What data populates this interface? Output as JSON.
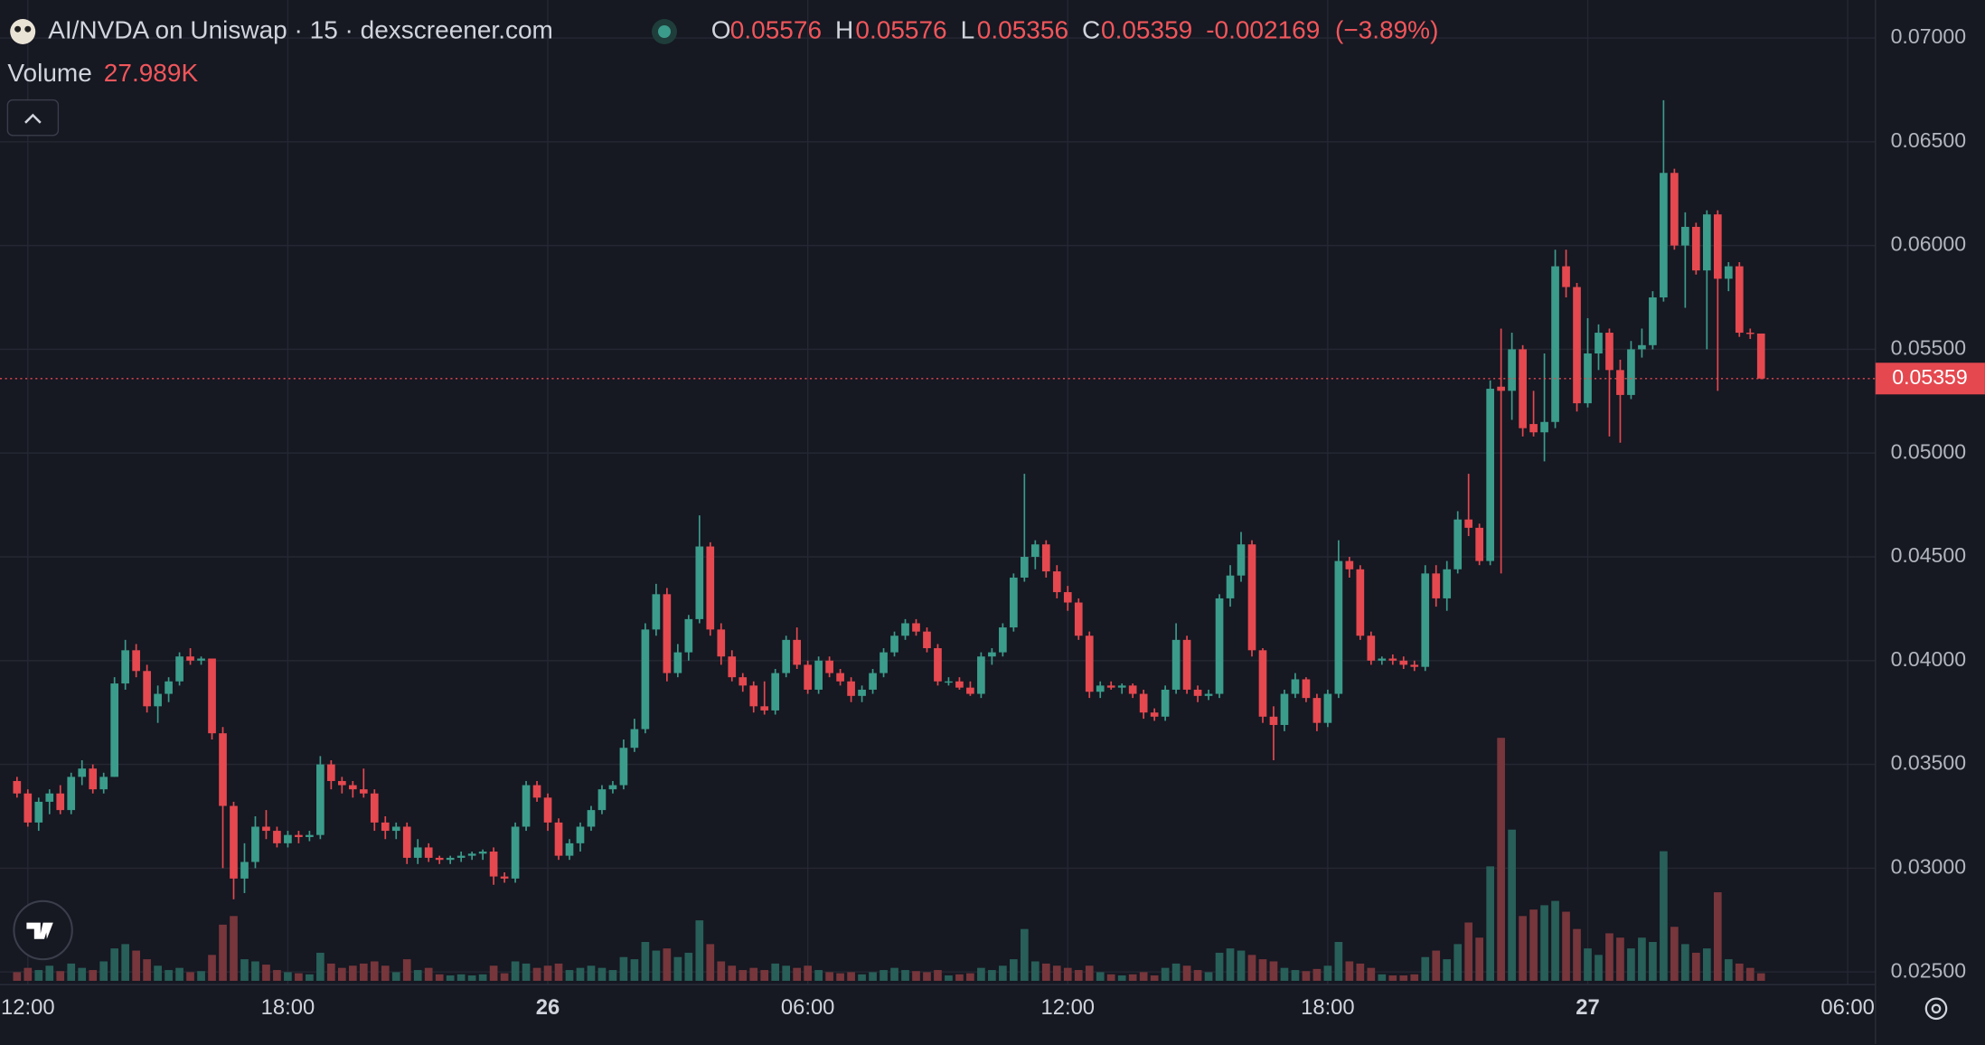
{
  "header": {
    "title": "AI/NVDA on Uniswap · 15 · dexscreener.com",
    "o_key": "O",
    "open": 0.05576,
    "h_key": "H",
    "high": 0.05576,
    "l_key": "L",
    "low": 0.05356,
    "c_key": "C",
    "close": 0.05359,
    "change": -0.002169,
    "change_pct": "(−3.89%)",
    "volume_label": "Volume",
    "volume": "27.989K"
  },
  "chart_data": {
    "type": "candlestick",
    "up_color": "#3b9c8b",
    "down_color": "#e5484f",
    "volume_up_color": "#285f58",
    "volume_down_color": "#76363b",
    "grid": true,
    "xlim": [
      -1.57,
      171.56
    ],
    "xticks": [
      {
        "value": 1,
        "label": "12:00"
      },
      {
        "value": 25,
        "label": "18:00"
      },
      {
        "value": 49,
        "label": "26"
      },
      {
        "value": 73,
        "label": "06:00"
      },
      {
        "value": 97,
        "label": "12:00"
      },
      {
        "value": 121,
        "label": "18:00"
      },
      {
        "value": 145,
        "label": "27"
      },
      {
        "value": 169,
        "label": "06:00"
      }
    ],
    "ylim": [
      0.02439,
      0.07183
    ],
    "yticks": [
      {
        "value": 0.025,
        "label": "0.02500"
      },
      {
        "value": 0.03,
        "label": "0.03000"
      },
      {
        "value": 0.035,
        "label": "0.03500"
      },
      {
        "value": 0.04,
        "label": "0.04000"
      },
      {
        "value": 0.045,
        "label": "0.04500"
      },
      {
        "value": 0.05,
        "label": "0.05000"
      },
      {
        "value": 0.055,
        "label": "0.05500"
      },
      {
        "value": 0.06,
        "label": "0.06000"
      },
      {
        "value": 0.065,
        "label": "0.06500"
      },
      {
        "value": 0.07,
        "label": "0.07000"
      }
    ],
    "last_price": 0.05359,
    "open": [
      0.0342,
      0.0336,
      0.0322,
      0.0332,
      0.0336,
      0.0328,
      0.0344,
      0.0348,
      0.0338,
      0.0344,
      0.0389,
      0.0405,
      0.0395,
      0.0378,
      0.0384,
      0.039,
      0.0402,
      0.04,
      0.0401,
      0.0365,
      0.033,
      0.0295,
      0.0303,
      0.032,
      0.0318,
      0.0312,
      0.0316,
      0.0315,
      0.0316,
      0.035,
      0.0342,
      0.034,
      0.0338,
      0.0336,
      0.0322,
      0.0318,
      0.032,
      0.0305,
      0.031,
      0.0305,
      0.0304,
      0.0305,
      0.0306,
      0.0307,
      0.0308,
      0.0296,
      0.0295,
      0.032,
      0.034,
      0.0334,
      0.0322,
      0.0306,
      0.0312,
      0.032,
      0.0328,
      0.0338,
      0.034,
      0.0358,
      0.0367,
      0.0415,
      0.0432,
      0.0394,
      0.0404,
      0.042,
      0.0455,
      0.0415,
      0.0402,
      0.0392,
      0.0388,
      0.0378,
      0.0376,
      0.0394,
      0.041,
      0.0398,
      0.0386,
      0.04,
      0.0394,
      0.039,
      0.0383,
      0.0386,
      0.0394,
      0.0404,
      0.0412,
      0.0418,
      0.0414,
      0.0406,
      0.039,
      0.039,
      0.0387,
      0.0384,
      0.0402,
      0.0404,
      0.0416,
      0.044,
      0.045,
      0.0456,
      0.0443,
      0.0433,
      0.0428,
      0.0412,
      0.0385,
      0.0388,
      0.0387,
      0.0388,
      0.0384,
      0.0375,
      0.0373,
      0.0386,
      0.041,
      0.0386,
      0.0383,
      0.0384,
      0.043,
      0.0441,
      0.0456,
      0.0405,
      0.0373,
      0.0369,
      0.0384,
      0.0391,
      0.0382,
      0.037,
      0.0384,
      0.0448,
      0.0444,
      0.0412,
      0.04,
      0.0401,
      0.04,
      0.0398,
      0.0397,
      0.0442,
      0.043,
      0.0444,
      0.0468,
      0.0464,
      0.0448,
      0.0532,
      0.053,
      0.055,
      0.0514,
      0.051,
      0.0515,
      0.059,
      0.058,
      0.0524,
      0.0548,
      0.0558,
      0.054,
      0.0528,
      0.055,
      0.0552,
      0.0575,
      0.0635,
      0.06,
      0.0609,
      0.0588,
      0.0615,
      0.0584,
      0.059,
      0.0558,
      0.05576
    ],
    "high": [
      0.0344,
      0.0338,
      0.0334,
      0.0338,
      0.034,
      0.0346,
      0.0352,
      0.035,
      0.0346,
      0.0392,
      0.041,
      0.0408,
      0.0398,
      0.0388,
      0.0392,
      0.0404,
      0.0406,
      0.0402,
      0.0401,
      0.0368,
      0.0332,
      0.0312,
      0.0325,
      0.0328,
      0.032,
      0.0318,
      0.0318,
      0.0318,
      0.0354,
      0.0352,
      0.0344,
      0.0342,
      0.0348,
      0.0338,
      0.0325,
      0.0322,
      0.0322,
      0.0314,
      0.0312,
      0.0306,
      0.0306,
      0.0308,
      0.0308,
      0.0309,
      0.031,
      0.0298,
      0.0322,
      0.0342,
      0.0342,
      0.0336,
      0.0324,
      0.0314,
      0.0322,
      0.033,
      0.034,
      0.0342,
      0.0362,
      0.0372,
      0.0418,
      0.0437,
      0.0435,
      0.0408,
      0.0422,
      0.047,
      0.0457,
      0.0418,
      0.0405,
      0.0394,
      0.039,
      0.039,
      0.0396,
      0.0412,
      0.0416,
      0.04,
      0.0402,
      0.0402,
      0.0396,
      0.0392,
      0.0388,
      0.0396,
      0.0406,
      0.0414,
      0.042,
      0.042,
      0.0416,
      0.0408,
      0.0392,
      0.0392,
      0.039,
      0.0404,
      0.0406,
      0.0418,
      0.0442,
      0.049,
      0.0458,
      0.0458,
      0.0446,
      0.0436,
      0.043,
      0.0414,
      0.039,
      0.039,
      0.0389,
      0.0389,
      0.0386,
      0.0377,
      0.0388,
      0.0418,
      0.0412,
      0.0388,
      0.0386,
      0.0432,
      0.0446,
      0.0462,
      0.0458,
      0.0406,
      0.0378,
      0.0386,
      0.0394,
      0.0392,
      0.0384,
      0.0386,
      0.0458,
      0.045,
      0.0446,
      0.0414,
      0.0402,
      0.0403,
      0.0402,
      0.04,
      0.0446,
      0.0446,
      0.0448,
      0.0472,
      0.049,
      0.0466,
      0.0535,
      0.056,
      0.0558,
      0.0552,
      0.053,
      0.0548,
      0.0598,
      0.0598,
      0.0582,
      0.0565,
      0.0562,
      0.056,
      0.0545,
      0.0554,
      0.056,
      0.0578,
      0.067,
      0.0637,
      0.0616,
      0.0611,
      0.0617,
      0.0617,
      0.0592,
      0.0592,
      0.056,
      0.05576
    ],
    "low": [
      0.0334,
      0.032,
      0.0318,
      0.0326,
      0.0326,
      0.0326,
      0.034,
      0.0336,
      0.0336,
      0.0344,
      0.0386,
      0.0392,
      0.0375,
      0.037,
      0.038,
      0.0388,
      0.0398,
      0.0398,
      0.0362,
      0.03,
      0.0285,
      0.0288,
      0.03,
      0.0314,
      0.031,
      0.031,
      0.0312,
      0.0313,
      0.0314,
      0.0338,
      0.0336,
      0.0334,
      0.0334,
      0.0318,
      0.0314,
      0.0314,
      0.0302,
      0.0302,
      0.0303,
      0.0302,
      0.0302,
      0.0303,
      0.0304,
      0.0304,
      0.0292,
      0.0293,
      0.0293,
      0.0318,
      0.0332,
      0.0318,
      0.0304,
      0.0304,
      0.0308,
      0.0318,
      0.0326,
      0.0336,
      0.0338,
      0.0356,
      0.0365,
      0.0412,
      0.039,
      0.0392,
      0.04,
      0.0418,
      0.0412,
      0.0398,
      0.039,
      0.0385,
      0.0375,
      0.0374,
      0.0374,
      0.0392,
      0.0396,
      0.0384,
      0.0384,
      0.0392,
      0.0388,
      0.038,
      0.038,
      0.0384,
      0.0392,
      0.0402,
      0.041,
      0.0412,
      0.0404,
      0.0388,
      0.0388,
      0.0386,
      0.0383,
      0.0382,
      0.0398,
      0.0402,
      0.0414,
      0.0438,
      0.0444,
      0.044,
      0.043,
      0.0424,
      0.041,
      0.0382,
      0.0382,
      0.0386,
      0.0384,
      0.0382,
      0.0372,
      0.0371,
      0.0371,
      0.0384,
      0.0384,
      0.038,
      0.0381,
      0.0382,
      0.0426,
      0.0438,
      0.0402,
      0.037,
      0.0352,
      0.0366,
      0.0382,
      0.038,
      0.0366,
      0.0368,
      0.0382,
      0.044,
      0.041,
      0.0398,
      0.0398,
      0.0398,
      0.0396,
      0.0395,
      0.0395,
      0.0426,
      0.0424,
      0.0442,
      0.046,
      0.0446,
      0.0446,
      0.0442,
      0.0516,
      0.0508,
      0.0508,
      0.0496,
      0.0512,
      0.0575,
      0.052,
      0.0522,
      0.054,
      0.0508,
      0.0505,
      0.0526,
      0.0546,
      0.055,
      0.0573,
      0.0598,
      0.057,
      0.0586,
      0.055,
      0.053,
      0.0578,
      0.0556,
      0.0555,
      0.05356
    ],
    "close": [
      0.0336,
      0.0322,
      0.0332,
      0.0336,
      0.0328,
      0.0344,
      0.0348,
      0.0338,
      0.0344,
      0.0389,
      0.0405,
      0.0395,
      0.0378,
      0.0384,
      0.039,
      0.0402,
      0.04,
      0.0401,
      0.0365,
      0.033,
      0.0295,
      0.0303,
      0.032,
      0.0318,
      0.0312,
      0.0316,
      0.0315,
      0.0316,
      0.035,
      0.0342,
      0.034,
      0.0338,
      0.0336,
      0.0322,
      0.0318,
      0.032,
      0.0305,
      0.031,
      0.0305,
      0.0304,
      0.0305,
      0.0306,
      0.0307,
      0.0308,
      0.0296,
      0.0295,
      0.032,
      0.034,
      0.0334,
      0.0322,
      0.0306,
      0.0312,
      0.032,
      0.0328,
      0.0338,
      0.034,
      0.0358,
      0.0367,
      0.0415,
      0.0432,
      0.0394,
      0.0404,
      0.042,
      0.0455,
      0.0415,
      0.0402,
      0.0392,
      0.0388,
      0.0378,
      0.0376,
      0.0394,
      0.041,
      0.0398,
      0.0386,
      0.04,
      0.0394,
      0.039,
      0.0383,
      0.0386,
      0.0394,
      0.0404,
      0.0412,
      0.0418,
      0.0414,
      0.0406,
      0.039,
      0.039,
      0.0387,
      0.0384,
      0.0402,
      0.0404,
      0.0416,
      0.044,
      0.045,
      0.0456,
      0.0443,
      0.0433,
      0.0428,
      0.0412,
      0.0385,
      0.0388,
      0.0387,
      0.0388,
      0.0384,
      0.0375,
      0.0373,
      0.0386,
      0.041,
      0.0386,
      0.0383,
      0.0384,
      0.043,
      0.0441,
      0.0456,
      0.0405,
      0.0373,
      0.0369,
      0.0384,
      0.0391,
      0.0382,
      0.037,
      0.0384,
      0.0448,
      0.0444,
      0.0412,
      0.04,
      0.0401,
      0.04,
      0.0398,
      0.0397,
      0.0442,
      0.043,
      0.0444,
      0.0468,
      0.0464,
      0.0448,
      0.0531,
      0.053,
      0.055,
      0.0512,
      0.051,
      0.0515,
      0.059,
      0.058,
      0.0524,
      0.0548,
      0.0558,
      0.054,
      0.0528,
      0.055,
      0.0552,
      0.0575,
      0.0635,
      0.06,
      0.0609,
      0.0588,
      0.0615,
      0.0584,
      0.059,
      0.0558,
      0.05576,
      0.05359
    ],
    "volume": [
      32000,
      48000,
      40000,
      56000,
      36000,
      64000,
      48000,
      40000,
      72000,
      120000,
      136000,
      112000,
      80000,
      56000,
      40000,
      48000,
      32000,
      36000,
      96000,
      208000,
      240000,
      80000,
      72000,
      60000,
      40000,
      32000,
      28000,
      24000,
      104000,
      64000,
      48000,
      56000,
      64000,
      72000,
      56000,
      32000,
      80000,
      40000,
      48000,
      24000,
      20000,
      24000,
      20000,
      24000,
      56000,
      28000,
      72000,
      64000,
      48000,
      56000,
      64000,
      40000,
      48000,
      56000,
      48000,
      40000,
      88000,
      80000,
      144000,
      112000,
      120000,
      88000,
      104000,
      224000,
      136000,
      72000,
      56000,
      40000,
      48000,
      40000,
      64000,
      56000,
      48000,
      56000,
      40000,
      32000,
      28000,
      32000,
      24000,
      32000,
      40000,
      48000,
      40000,
      36000,
      32000,
      40000,
      20000,
      24000,
      28000,
      48000,
      40000,
      56000,
      80000,
      192000,
      72000,
      64000,
      56000,
      48000,
      40000,
      56000,
      32000,
      24000,
      20000,
      24000,
      32000,
      20000,
      48000,
      64000,
      56000,
      40000,
      32000,
      104000,
      120000,
      112000,
      96000,
      80000,
      72000,
      48000,
      40000,
      36000,
      44000,
      56000,
      144000,
      72000,
      64000,
      48000,
      24000,
      20000,
      20000,
      24000,
      88000,
      112000,
      80000,
      136000,
      216000,
      160000,
      424000,
      900000,
      560000,
      240000,
      264000,
      280000,
      296000,
      256000,
      192000,
      120000,
      96000,
      176000,
      160000,
      120000,
      160000,
      144000,
      480000,
      200000,
      136000,
      104000,
      120000,
      328000,
      80000,
      64000,
      48000,
      27989
    ]
  }
}
